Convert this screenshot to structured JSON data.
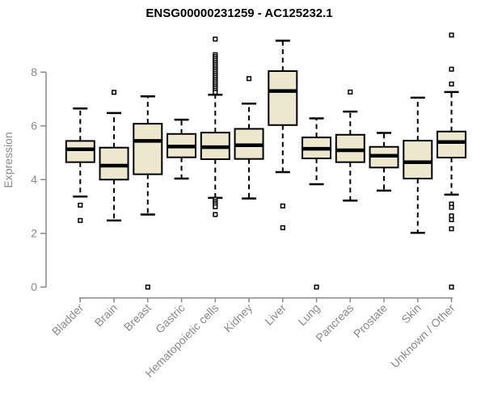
{
  "chart_data": {
    "type": "boxplot",
    "title": "ENSG00000231259 - AC125232.1",
    "ylabel": "Expression",
    "xlabel": "",
    "ylim": [
      0,
      9.6
    ],
    "yticks": [
      0,
      2,
      4,
      6,
      8
    ],
    "grid": false,
    "legend": "none",
    "categories": [
      "Bladder",
      "Brain",
      "Breast",
      "Gastric",
      "Hematopoietic cells",
      "Kidney",
      "Liver",
      "Lung",
      "Pancreas",
      "Prostate",
      "Skin",
      "Unknown / Other"
    ],
    "series": [
      {
        "category": "Bladder",
        "whisker_low": 3.37,
        "q1": 4.65,
        "median": 5.13,
        "q3": 5.44,
        "whisker_high": 6.65,
        "outliers": [
          3.05,
          2.48
        ]
      },
      {
        "category": "Brain",
        "whisker_low": 2.48,
        "q1": 4.0,
        "median": 4.52,
        "q3": 5.19,
        "whisker_high": 6.48,
        "outliers": [
          7.25
        ]
      },
      {
        "category": "Breast",
        "whisker_low": 2.7,
        "q1": 4.2,
        "median": 5.44,
        "q3": 6.08,
        "whisker_high": 7.1,
        "outliers": [
          0
        ]
      },
      {
        "category": "Gastric",
        "whisker_low": 4.04,
        "q1": 4.83,
        "median": 5.23,
        "q3": 5.7,
        "whisker_high": 6.23,
        "outliers": []
      },
      {
        "category": "Hematopoietic cells",
        "whisker_low": 3.32,
        "q1": 4.76,
        "median": 5.21,
        "q3": 5.75,
        "whisker_high": 7.16,
        "outliers": [
          9.23,
          8.65,
          8.58,
          8.51,
          8.44,
          8.37,
          8.3,
          8.23,
          8.16,
          8.09,
          8.02,
          7.95,
          7.88,
          7.81,
          7.74,
          7.67,
          7.6,
          7.53,
          7.46,
          7.39,
          7.32,
          7.25,
          3.27,
          3.2,
          3.13,
          3.06,
          2.99,
          2.7
        ]
      },
      {
        "category": "Kidney",
        "whisker_low": 3.3,
        "q1": 4.77,
        "median": 5.28,
        "q3": 5.89,
        "whisker_high": 6.83,
        "outliers": [
          7.76
        ]
      },
      {
        "category": "Liver",
        "whisker_low": 4.28,
        "q1": 6.03,
        "median": 7.3,
        "q3": 8.04,
        "whisker_high": 9.17,
        "outliers": [
          3.02,
          2.21
        ]
      },
      {
        "category": "Lung",
        "whisker_low": 3.83,
        "q1": 4.79,
        "median": 5.15,
        "q3": 5.57,
        "whisker_high": 6.28,
        "outliers": [
          0
        ]
      },
      {
        "category": "Pancreas",
        "whisker_low": 3.22,
        "q1": 4.65,
        "median": 5.09,
        "q3": 5.67,
        "whisker_high": 6.53,
        "outliers": [
          7.26
        ]
      },
      {
        "category": "Prostate",
        "whisker_low": 3.59,
        "q1": 4.45,
        "median": 4.89,
        "q3": 5.22,
        "whisker_high": 5.74,
        "outliers": []
      },
      {
        "category": "Skin",
        "whisker_low": 2.02,
        "q1": 4.04,
        "median": 4.65,
        "q3": 5.45,
        "whisker_high": 7.05,
        "outliers": []
      },
      {
        "category": "Unknown / Other",
        "whisker_low": 3.44,
        "q1": 4.82,
        "median": 5.4,
        "q3": 5.79,
        "whisker_high": 7.26,
        "outliers": [
          9.38,
          8.11,
          7.56,
          3.09,
          2.97,
          2.65,
          2.51,
          2.17,
          0
        ]
      }
    ],
    "colors": {
      "box_fill": "#EDE7CE",
      "box_stroke": "#000000",
      "median": "#000000",
      "whisker": "#000000",
      "outlier_fill": "#FFFFFF",
      "outlier_stroke": "#000000",
      "axis": "#8A8A8A",
      "tick_label": "#8A8A8A",
      "title": "#000000",
      "background": "#FFFFFF"
    }
  }
}
